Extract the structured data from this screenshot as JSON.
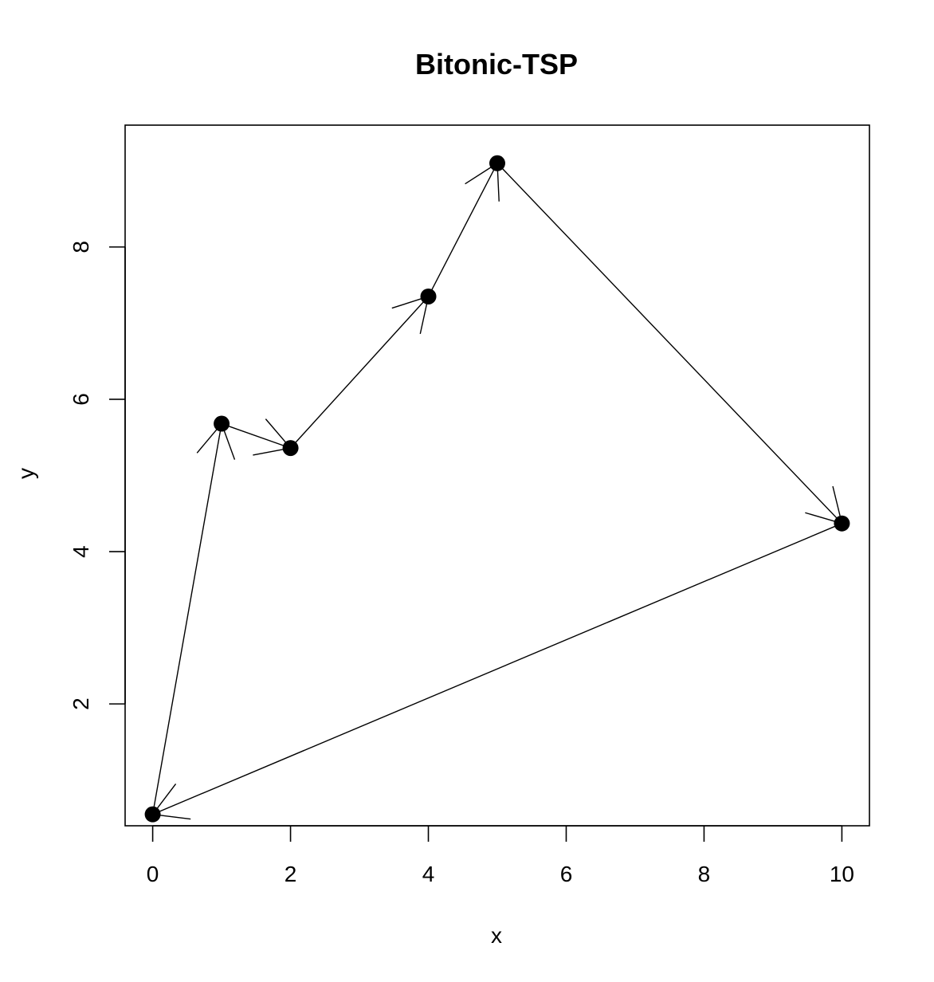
{
  "chart_data": {
    "type": "scatter",
    "title": "Bitonic-TSP",
    "xlabel": "x",
    "ylabel": "y",
    "xlim": [
      -0.4,
      10.4
    ],
    "ylim": [
      0.4,
      9.6
    ],
    "x_ticks": [
      0,
      2,
      4,
      6,
      8,
      10
    ],
    "y_ticks": [
      2,
      4,
      6,
      8
    ],
    "x_tick_labels": [
      "0",
      "2",
      "4",
      "6",
      "8",
      "10"
    ],
    "y_tick_labels": [
      "2",
      "4",
      "6",
      "8"
    ],
    "grid": false,
    "points": [
      {
        "x": 0,
        "y": 0.55
      },
      {
        "x": 1,
        "y": 5.68
      },
      {
        "x": 2,
        "y": 5.36
      },
      {
        "x": 4,
        "y": 7.35
      },
      {
        "x": 5,
        "y": 9.1
      },
      {
        "x": 10,
        "y": 4.37
      }
    ],
    "tour_order": [
      0,
      1,
      2,
      3,
      4,
      5,
      0
    ],
    "colors": {
      "points": "#000000",
      "edges": "#000000",
      "frame": "#000000",
      "background": "#ffffff"
    }
  }
}
